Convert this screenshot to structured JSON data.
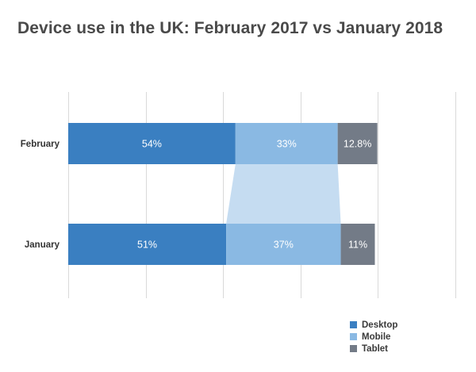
{
  "title": "Device use in the UK: February 2017 vs January 2018",
  "colors": {
    "Desktop": "#3a7fc1",
    "Mobile": "#8ab9e3",
    "Tablet": "#737b87",
    "connector": "#c5dcf1",
    "grid": "#d9d9d9"
  },
  "legend": [
    "Desktop",
    "Mobile",
    "Tablet"
  ],
  "chart_data": {
    "type": "bar",
    "orientation": "horizontal",
    "stacked": true,
    "categories": [
      "February",
      "January"
    ],
    "series": [
      {
        "name": "Desktop",
        "values": [
          54,
          51
        ],
        "labels": [
          "54%",
          "51%"
        ]
      },
      {
        "name": "Mobile",
        "values": [
          33,
          37
        ],
        "labels": [
          "33%",
          "37%"
        ]
      },
      {
        "name": "Tablet",
        "values": [
          12.8,
          11
        ],
        "labels": [
          "12.8%",
          "11%"
        ]
      }
    ],
    "xlim": [
      0,
      125
    ],
    "grid": true,
    "legend_position": "bottom-right"
  }
}
